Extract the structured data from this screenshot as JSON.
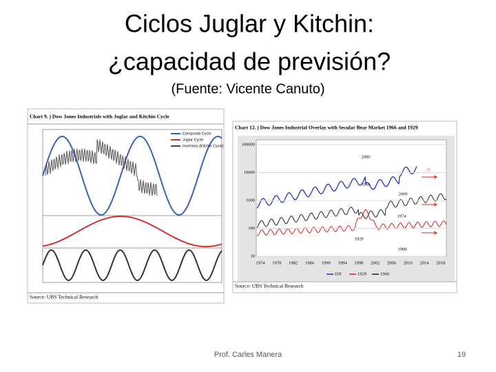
{
  "slide": {
    "title_lines": [
      "Ciclos Juglar y Kitchin:",
      "¿capacidad de previsión?"
    ],
    "subtitle": "(Fuente: Vicente Canuto)",
    "footer": "Prof. Carles Manera",
    "page_number": "19"
  },
  "left_chart": {
    "title": "Chart 9. )  Dow Jones Industrials with Juglar and Kitchin Cycle",
    "legend": [
      "Composite Cycle",
      "Juglar Cycle",
      "Inventory (Kitchin Cycle)"
    ],
    "source": "Source: UBS Technical Research"
  },
  "right_chart": {
    "title": "Chart 12. ) Dow Jones Industrial Overlay with Secular Bear Market 1966 and 1929",
    "yticks": [
      "100000",
      "10000",
      "1000",
      "100",
      "10"
    ],
    "xticks": [
      "1974",
      "1978",
      "1982",
      "1986",
      "1990",
      "1994",
      "1998",
      "2002",
      "2006",
      "2010",
      "2014",
      "2018"
    ],
    "annotations": [
      "2000",
      "1966",
      "2009",
      "1974",
      "1929",
      "1988",
      "??"
    ],
    "legend": [
      "DJI",
      "1929",
      "1966"
    ],
    "source": "Source: UBS Technical Research"
  }
}
